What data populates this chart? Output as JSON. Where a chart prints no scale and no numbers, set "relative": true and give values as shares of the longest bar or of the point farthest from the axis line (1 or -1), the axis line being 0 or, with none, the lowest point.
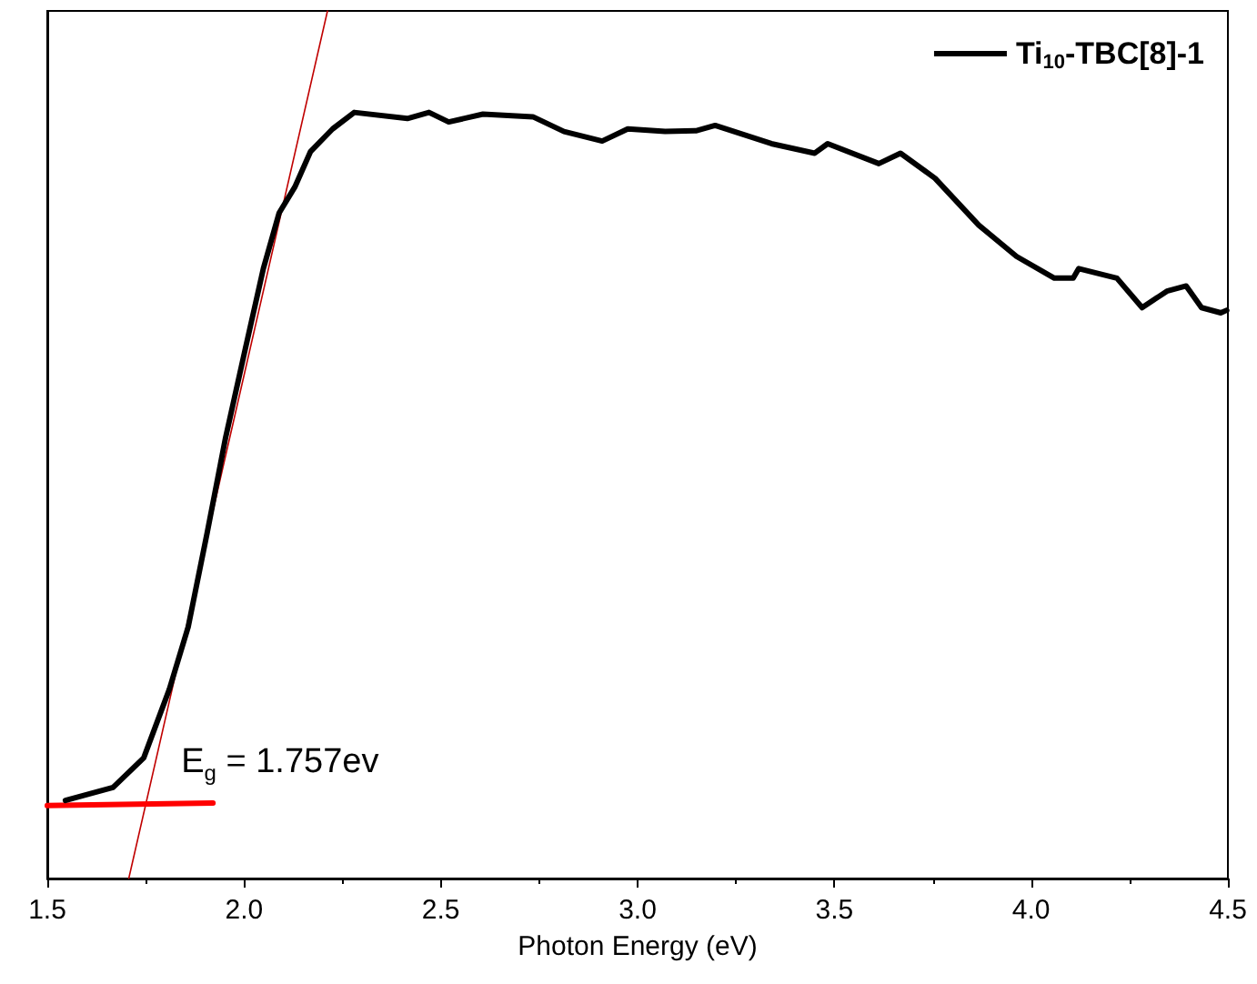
{
  "chart_data": {
    "type": "line",
    "xlabel": "Photon Energy (eV)",
    "relative": true,
    "legend": "top right",
    "marker": "none",
    "line_style": "solid",
    "grid": false,
    "xlim": [
      1.5,
      4.5
    ],
    "xticks": [
      1.5,
      {
        "value": 2,
        "label": "2.0"
      },
      2.5,
      {
        "value": 3,
        "label": "3.0"
      },
      3.5,
      {
        "value": 4,
        "label": "4.0"
      },
      4.5
    ],
    "annotations": [
      {
        "text": "E$_{g}$ = 1.757ev",
        "x": 1.757,
        "y": 0.086
      }
    ],
    "series": [
      {
        "name": "Ti$_{10}$-TBC[8]-1",
        "color": "#000000",
        "x": [
          1.546,
          1.667,
          1.745,
          1.81,
          1.858,
          1.906,
          1.953,
          2.002,
          2.049,
          2.089,
          2.129,
          2.169,
          2.225,
          2.28,
          2.415,
          2.47,
          2.52,
          2.607,
          2.734,
          2.813,
          2.91,
          2.975,
          3.07,
          3.15,
          3.197,
          3.34,
          3.45,
          3.483,
          3.613,
          3.668,
          3.756,
          3.867,
          3.963,
          4.059,
          4.107,
          4.121,
          4.218,
          4.282,
          4.345,
          4.394,
          4.433,
          4.482,
          4.497
        ],
        "values": [
          0.09,
          0.105,
          0.139,
          0.218,
          0.29,
          0.398,
          0.508,
          0.608,
          0.703,
          0.767,
          0.797,
          0.838,
          0.864,
          0.883,
          0.876,
          0.883,
          0.872,
          0.881,
          0.878,
          0.861,
          0.85,
          0.864,
          0.861,
          0.862,
          0.868,
          0.847,
          0.836,
          0.847,
          0.824,
          0.836,
          0.807,
          0.753,
          0.717,
          0.692,
          0.692,
          0.703,
          0.692,
          0.658,
          0.677,
          0.683,
          0.658,
          0.652,
          0.655
        ]
      },
      {
        "type": "line",
        "color": "#c00000",
        "x": [
          1.707,
          2.212
        ],
        "values": [
          0,
          1
        ]
      },
      {
        "type": "line",
        "color": "#ff0000",
        "x": [
          1.5,
          1.921
        ],
        "values": [
          0.084,
          0.087
        ]
      }
    ]
  }
}
